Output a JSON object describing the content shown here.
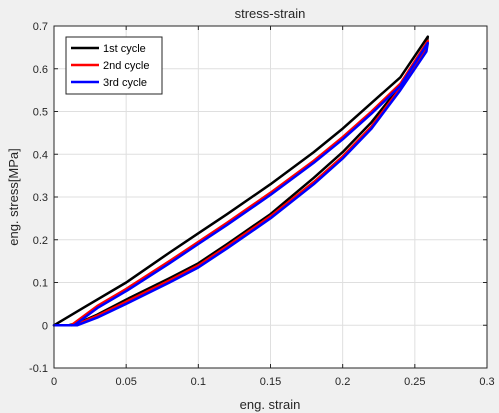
{
  "chart_data": {
    "type": "line",
    "title": "stress-strain",
    "xlabel": "eng. strain",
    "ylabel": "eng. stress[MPa]",
    "xlim": [
      0,
      0.3
    ],
    "ylim": [
      -0.1,
      0.7
    ],
    "xticks": [
      0,
      0.05,
      0.1,
      0.15,
      0.2,
      0.25,
      0.3
    ],
    "xtick_labels": [
      "0",
      "0.05",
      "0.1",
      "0.15",
      "0.2",
      "0.25",
      "0.3"
    ],
    "yticks": [
      -0.1,
      0,
      0.1,
      0.2,
      0.3,
      0.4,
      0.5,
      0.6,
      0.7
    ],
    "ytick_labels": [
      "-0.1",
      "0",
      "0.1",
      "0.2",
      "0.3",
      "0.4",
      "0.5",
      "0.6",
      "0.7"
    ],
    "grid": true,
    "legend_position": "top-left",
    "series": [
      {
        "name": "1st cycle",
        "color": "#000000",
        "x": [
          0,
          0.02,
          0.05,
          0.08,
          0.1,
          0.12,
          0.15,
          0.18,
          0.2,
          0.22,
          0.24,
          0.259,
          0.258,
          0.25,
          0.24,
          0.22,
          0.2,
          0.18,
          0.15,
          0.12,
          0.1,
          0.08,
          0.05,
          0.03,
          0.02,
          0.015,
          0.01,
          0
        ],
        "y": [
          0,
          0.04,
          0.1,
          0.17,
          0.215,
          0.26,
          0.33,
          0.405,
          0.46,
          0.52,
          0.58,
          0.675,
          0.655,
          0.61,
          0.56,
          0.475,
          0.405,
          0.345,
          0.26,
          0.19,
          0.145,
          0.11,
          0.06,
          0.025,
          0.01,
          0.004,
          0,
          0
        ]
      },
      {
        "name": "2nd cycle",
        "color": "#ff0000",
        "x": [
          0.012,
          0.03,
          0.05,
          0.08,
          0.1,
          0.12,
          0.15,
          0.18,
          0.2,
          0.22,
          0.24,
          0.259,
          0.258,
          0.25,
          0.24,
          0.22,
          0.2,
          0.18,
          0.15,
          0.12,
          0.1,
          0.08,
          0.05,
          0.03,
          0.02,
          0.016,
          0.012
        ],
        "y": [
          0,
          0.045,
          0.085,
          0.15,
          0.195,
          0.24,
          0.31,
          0.385,
          0.44,
          0.5,
          0.565,
          0.665,
          0.645,
          0.605,
          0.555,
          0.465,
          0.395,
          0.335,
          0.255,
          0.185,
          0.14,
          0.105,
          0.055,
          0.022,
          0.008,
          0.002,
          0
        ]
      },
      {
        "name": "3rd cycle",
        "color": "#0000ff",
        "x": [
          0,
          0.014,
          0.03,
          0.05,
          0.08,
          0.1,
          0.12,
          0.15,
          0.18,
          0.2,
          0.22,
          0.24,
          0.259,
          0.258,
          0.25,
          0.24,
          0.22,
          0.2,
          0.18,
          0.15,
          0.12,
          0.1,
          0.08,
          0.05,
          0.03,
          0.02,
          0.016,
          0
        ],
        "y": [
          0,
          0,
          0.04,
          0.08,
          0.145,
          0.19,
          0.235,
          0.305,
          0.38,
          0.435,
          0.495,
          0.56,
          0.66,
          0.64,
          0.6,
          0.55,
          0.46,
          0.39,
          0.33,
          0.25,
          0.18,
          0.135,
          0.1,
          0.05,
          0.018,
          0.005,
          0,
          0
        ]
      }
    ]
  }
}
